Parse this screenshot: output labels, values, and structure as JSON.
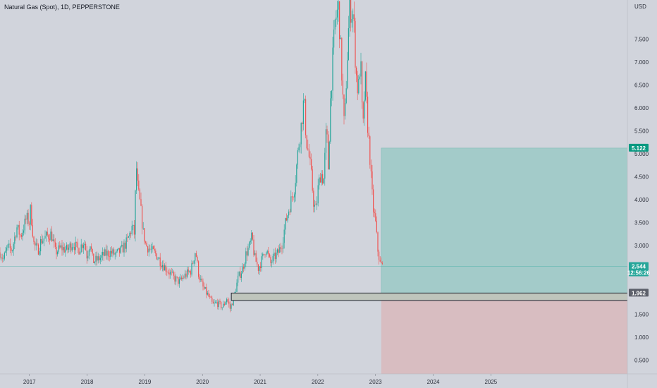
{
  "header": {
    "title": "Natural Gas (Spot), 1D, PEPPERSTONE"
  },
  "chart_data": {
    "type": "candlestick",
    "currency": "USD",
    "y_axis": {
      "ylim": [
        0.2,
        8.35
      ],
      "tick_labels": [
        "0.500",
        "1.000",
        "1.500",
        "2.000",
        "2.500",
        "3.000",
        "3.500",
        "4.000",
        "4.500",
        "5.000",
        "5.500",
        "6.000",
        "6.500",
        "7.000",
        "7.500"
      ]
    },
    "x_axis": {
      "xlim": [
        2016.49,
        2027.88
      ],
      "tick_labels": [
        "2017",
        "2018",
        "2019",
        "2020",
        "2021",
        "2022",
        "2023",
        "2024",
        "2025"
      ]
    },
    "price_path": [
      [
        2016.49,
        2.85
      ],
      [
        2016.55,
        2.7
      ],
      [
        2016.62,
        2.95
      ],
      [
        2016.7,
        2.9
      ],
      [
        2016.78,
        3.4
      ],
      [
        2016.85,
        3.2
      ],
      [
        2016.95,
        3.6
      ],
      [
        2017.0,
        3.5
      ],
      [
        2017.02,
        3.8
      ],
      [
        2017.08,
        3.0
      ],
      [
        2017.15,
        2.9
      ],
      [
        2017.2,
        3.1
      ],
      [
        2017.3,
        3.2
      ],
      [
        2017.38,
        3.25
      ],
      [
        2017.45,
        2.85
      ],
      [
        2017.55,
        2.95
      ],
      [
        2017.65,
        2.9
      ],
      [
        2017.75,
        3.05
      ],
      [
        2017.85,
        2.9
      ],
      [
        2017.95,
        3.1
      ],
      [
        2018.0,
        2.75
      ],
      [
        2018.05,
        3.1
      ],
      [
        2018.1,
        2.65
      ],
      [
        2018.2,
        2.7
      ],
      [
        2018.3,
        2.8
      ],
      [
        2018.4,
        2.85
      ],
      [
        2018.5,
        2.8
      ],
      [
        2018.6,
        2.9
      ],
      [
        2018.7,
        3.1
      ],
      [
        2018.78,
        3.4
      ],
      [
        2018.82,
        3.25
      ],
      [
        2018.85,
        4.8
      ],
      [
        2018.88,
        4.2
      ],
      [
        2018.92,
        3.9
      ],
      [
        2018.97,
        3.3
      ],
      [
        2019.02,
        3.0
      ],
      [
        2019.1,
        2.9
      ],
      [
        2019.2,
        2.8
      ],
      [
        2019.3,
        2.6
      ],
      [
        2019.4,
        2.45
      ],
      [
        2019.5,
        2.3
      ],
      [
        2019.6,
        2.2
      ],
      [
        2019.7,
        2.35
      ],
      [
        2019.8,
        2.45
      ],
      [
        2019.88,
        2.9
      ],
      [
        2019.93,
        2.4
      ],
      [
        2020.0,
        2.1
      ],
      [
        2020.1,
        1.9
      ],
      [
        2020.18,
        1.7
      ],
      [
        2020.25,
        1.75
      ],
      [
        2020.35,
        1.65
      ],
      [
        2020.42,
        1.85
      ],
      [
        2020.48,
        1.62
      ],
      [
        2020.55,
        1.9
      ],
      [
        2020.62,
        2.3
      ],
      [
        2020.7,
        2.5
      ],
      [
        2020.75,
        2.8
      ],
      [
        2020.82,
        3.0
      ],
      [
        2020.86,
        3.2
      ],
      [
        2020.9,
        2.75
      ],
      [
        2020.97,
        2.5
      ],
      [
        2021.05,
        2.75
      ],
      [
        2021.1,
        2.95
      ],
      [
        2021.18,
        2.6
      ],
      [
        2021.25,
        2.75
      ],
      [
        2021.32,
        2.85
      ],
      [
        2021.38,
        3.05
      ],
      [
        2021.44,
        3.5
      ],
      [
        2021.52,
        3.9
      ],
      [
        2021.6,
        4.3
      ],
      [
        2021.66,
        5.1
      ],
      [
        2021.72,
        5.7
      ],
      [
        2021.76,
        6.2
      ],
      [
        2021.8,
        5.3
      ],
      [
        2021.84,
        5.0
      ],
      [
        2021.88,
        4.6
      ],
      [
        2021.93,
        3.9
      ],
      [
        2021.97,
        3.75
      ],
      [
        2022.0,
        4.2
      ],
      [
        2022.05,
        4.6
      ],
      [
        2022.1,
        4.4
      ],
      [
        2022.15,
        5.6
      ],
      [
        2022.18,
        4.7
      ],
      [
        2022.22,
        6.2
      ],
      [
        2022.26,
        7.1
      ],
      [
        2022.3,
        7.9
      ],
      [
        2022.36,
        8.2
      ],
      [
        2022.42,
        6.6
      ],
      [
        2022.46,
        5.5
      ],
      [
        2022.5,
        6.8
      ],
      [
        2022.55,
        8.2
      ],
      [
        2022.62,
        8.0
      ],
      [
        2022.66,
        6.8
      ],
      [
        2022.7,
        6.3
      ],
      [
        2022.74,
        7.1
      ],
      [
        2022.78,
        5.4
      ],
      [
        2022.82,
        6.7
      ],
      [
        2022.86,
        5.7
      ],
      [
        2022.9,
        5.0
      ],
      [
        2022.93,
        4.3
      ],
      [
        2022.96,
        3.8
      ],
      [
        2023.0,
        3.5
      ],
      [
        2023.04,
        2.9
      ],
      [
        2023.08,
        2.6
      ],
      [
        2023.12,
        2.544
      ]
    ],
    "long_position": {
      "entry": 1.962,
      "target": 5.122,
      "stop": 0.1,
      "x_start": 2023.1,
      "x_end": 2027.78,
      "entry_zone": {
        "x_start": 2020.5,
        "low": 1.8,
        "high": 1.962
      }
    },
    "last_price": 2.544,
    "countdown": "12:56:26",
    "colors": {
      "up": "#26a69a",
      "down": "#ef5350",
      "profit_zone": "#a3cbc9",
      "loss_zone": "#d8bdc1",
      "entry_zone": "#bfc5bc",
      "price_line": "#26a69a",
      "background": "#d1d4dc"
    }
  }
}
